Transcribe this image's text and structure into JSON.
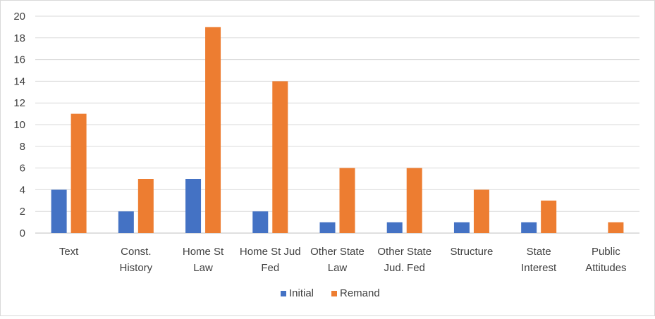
{
  "chart_data": {
    "type": "bar",
    "categories": [
      [
        "Text"
      ],
      [
        "Const.",
        "History"
      ],
      [
        "Home St",
        "Law"
      ],
      [
        "Home St Jud",
        "Fed"
      ],
      [
        "Other State",
        "Law"
      ],
      [
        "Other State",
        "Jud. Fed"
      ],
      [
        "Structure"
      ],
      [
        "State",
        "Interest"
      ],
      [
        "Public",
        "Attitudes"
      ]
    ],
    "series": [
      {
        "name": "Initial",
        "color": "#4472C4",
        "values": [
          4,
          2,
          5,
          2,
          1,
          1,
          1,
          1,
          0
        ]
      },
      {
        "name": "Remand",
        "color": "#ED7D31",
        "values": [
          11,
          5,
          19,
          14,
          6,
          6,
          4,
          3,
          1
        ]
      }
    ],
    "ylim": [
      0,
      20
    ],
    "yticks": [
      0,
      2,
      4,
      6,
      8,
      10,
      12,
      14,
      16,
      18,
      20
    ],
    "grid": true,
    "legend_position": "bottom"
  }
}
